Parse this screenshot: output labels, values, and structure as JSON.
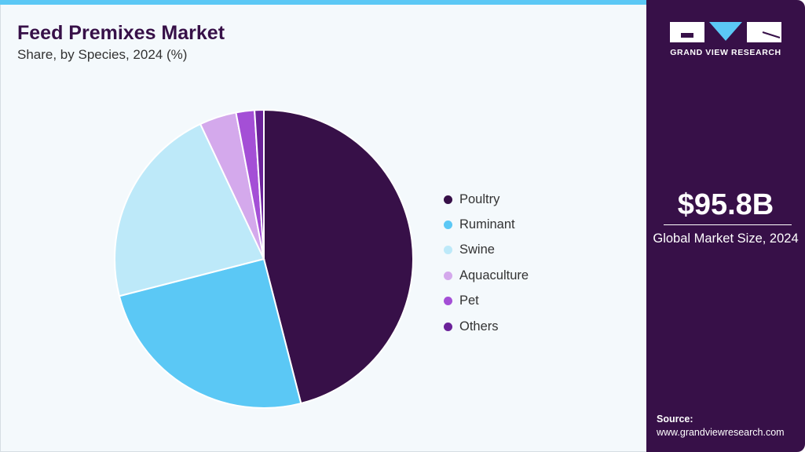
{
  "header": {
    "title": "Feed Premixes Market",
    "subtitle": "Share, by Species, 2024 (%)"
  },
  "side": {
    "logo_text": "GRAND VIEW RESEARCH",
    "market_size": "$95.8B",
    "market_label": "Global Market Size, 2024",
    "source_label": "Source:",
    "source_url": "www.grandviewresearch.com"
  },
  "colors": {
    "accent": "#5bc8f5",
    "brand": "#371048"
  },
  "chart_data": {
    "type": "pie",
    "title": "Feed Premixes Market",
    "subtitle": "Share, by Species, 2024 (%)",
    "legend_position": "right",
    "start": "12 o'clock, clockwise",
    "categories": [
      "Poultry",
      "Ruminant",
      "Swine",
      "Aquaculture",
      "Pet",
      "Others"
    ],
    "values": [
      46,
      25,
      22,
      4,
      2,
      1
    ],
    "colors": [
      "#371048",
      "#5bc8f5",
      "#bde9f9",
      "#d4a9ec",
      "#a44fd6",
      "#6b2299"
    ]
  }
}
